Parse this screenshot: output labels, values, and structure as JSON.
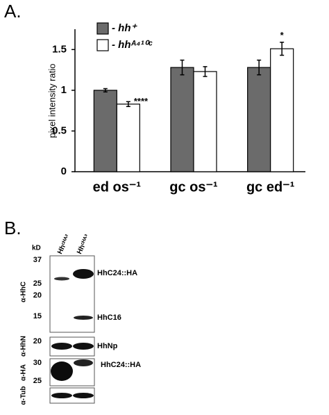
{
  "chart_data": {
    "type": "bar",
    "panel_label": "A.",
    "ylabel": "pixel intensity ratio",
    "categories": [
      "ed os⁻¹",
      "gc os⁻¹",
      "gc ed⁻¹"
    ],
    "series": [
      {
        "name": "- hh⁺",
        "color": "#6b6b6b",
        "values": [
          1.0,
          1.28,
          1.28
        ],
        "errors": [
          0.02,
          0.09,
          0.09
        ]
      },
      {
        "name": "- hhᴬ⁴¹⁰ᶜ",
        "color": "#ffffff",
        "values": [
          0.83,
          1.23,
          1.51
        ],
        "errors": [
          0.03,
          0.06,
          0.08
        ],
        "stars": [
          "****",
          null,
          "*"
        ]
      }
    ],
    "ylim": [
      0,
      1.75
    ],
    "yticks": [
      0,
      0.5,
      1,
      1.5
    ],
    "grid": false
  },
  "blot": {
    "panel_label": "B.",
    "kd_label": "kD",
    "lanes": [
      "Hhᶜᴴᴬ²",
      "Hhᶜᴴᴬ³"
    ],
    "hhc": {
      "antibody": "α-HhC",
      "markers": [
        "37",
        "25",
        "20",
        "15"
      ],
      "bands": [
        "HhC24::HA",
        "HhC16"
      ]
    },
    "hhn": {
      "antibody": "α-HhN",
      "markers": [
        "20"
      ],
      "bands": [
        "HhNp"
      ]
    },
    "ha": {
      "antibody": "α-HA",
      "markers": [
        "30",
        "25"
      ],
      "bands": [
        "HhC24::HA"
      ]
    },
    "tub": {
      "antibody": "α-Tub"
    }
  }
}
